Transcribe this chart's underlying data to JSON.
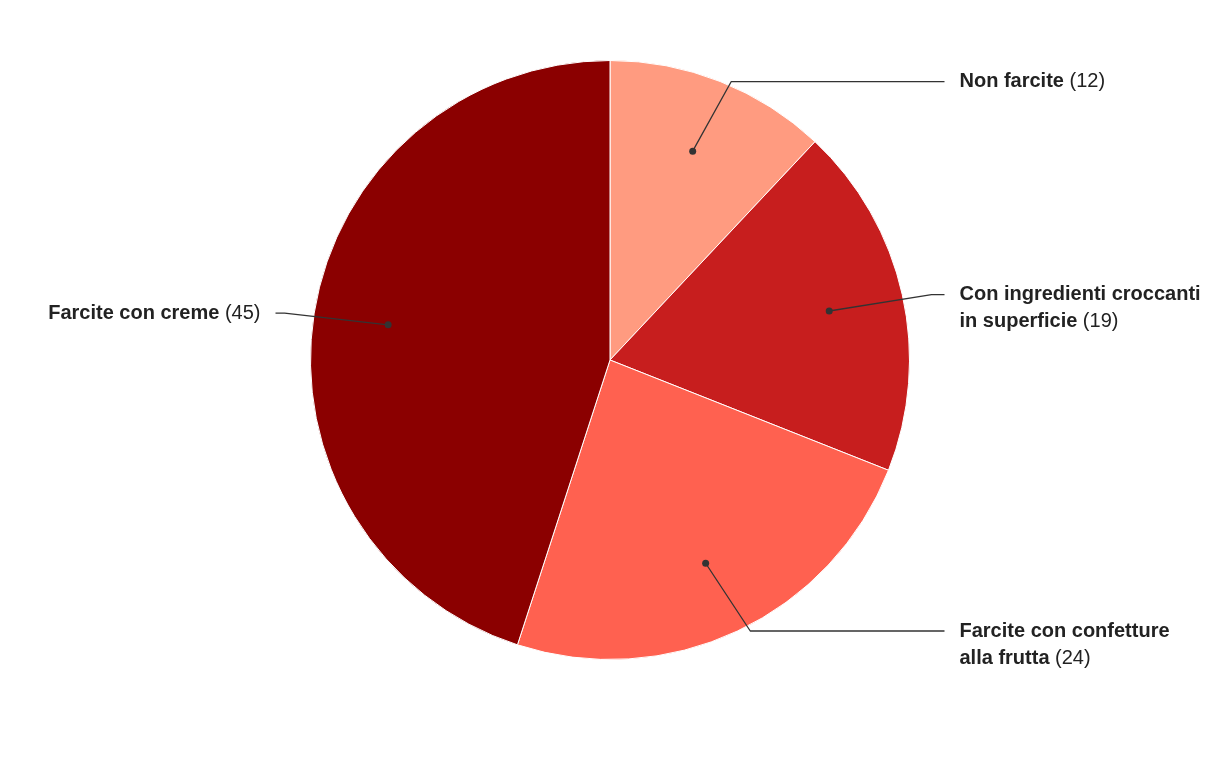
{
  "chart_data": {
    "type": "pie",
    "categories": [
      "Non farcite",
      "Con ingredienti croccanti in superficie",
      "Farcite con confetture alla frutta",
      "Farcite con creme"
    ],
    "values": [
      12,
      19,
      24,
      45
    ],
    "colors": [
      "#ff9b80",
      "#c71e1e",
      "#ff6150",
      "#8b0000"
    ],
    "value_labels": [
      "(12)",
      "(19)",
      "(24)",
      "(45)"
    ],
    "legend": false
  }
}
